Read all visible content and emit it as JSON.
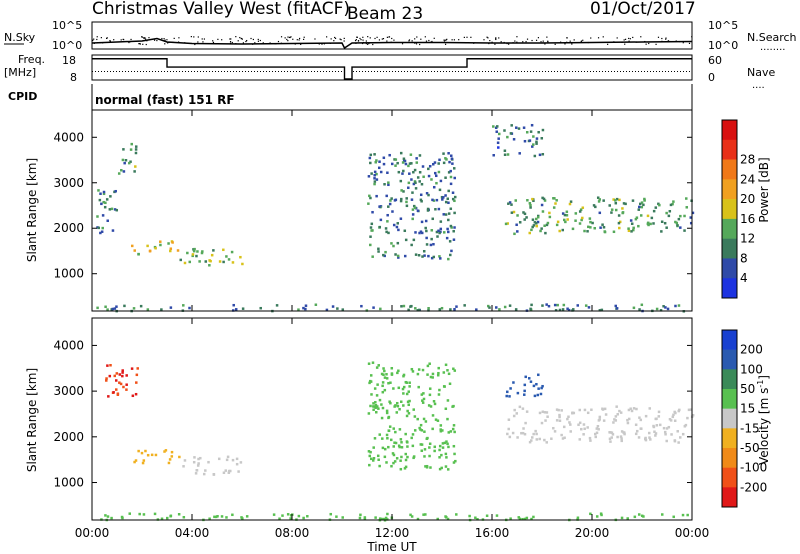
{
  "header": {
    "station": "Christmas Valley West (fitACF)",
    "beam": "Beam 23",
    "date": "01/Oct/2017"
  },
  "noise_panel": {
    "left_label": "N.Sky",
    "right_label": "N.Search",
    "ytick_top": "10^5",
    "ytick_bottom": "10^0",
    "yrange": [
      0,
      5
    ]
  },
  "freq_panel": {
    "left_label_top": "Freq.",
    "left_label_unit": "[MHz]",
    "right_label": "Nave",
    "left_ticks": [
      "18",
      "8"
    ],
    "right_ticks": [
      "60",
      "0"
    ],
    "freq_range_mhz": [
      8,
      18
    ],
    "nave_range": [
      0,
      60
    ]
  },
  "cpid": {
    "label": "CPID",
    "text": "normal (fast) 151 RF"
  },
  "power_panel": {
    "ylabel": "Slant Range [km]",
    "yticks": [
      "1000",
      "2000",
      "3000",
      "4000"
    ],
    "colorbar_label": "Power [dB]",
    "colorbar_ticks": [
      "4",
      "8",
      "12",
      "16",
      "20",
      "24",
      "28"
    ],
    "colors": [
      "#1d33e0",
      "#2f4aa8",
      "#3a7a5c",
      "#55a85a",
      "#d8c21a",
      "#f0a020",
      "#f07818",
      "#e83018",
      "#d81010"
    ]
  },
  "velocity_panel": {
    "ylabel": "Slant Range [km]",
    "yticks": [
      "1000",
      "2000",
      "3000",
      "4000"
    ],
    "colorbar_label": "Velocity [m s",
    "colorbar_sup": "-1",
    "colorbar_close": "]",
    "colorbar_ticks": [
      "200",
      "100",
      "50",
      "15",
      "-15",
      "-50",
      "-100",
      "-200"
    ],
    "colors": [
      "#1840d0",
      "#2a5ab0",
      "#3a8a58",
      "#58c050",
      "#c8c8c8",
      "#f0b020",
      "#f08a18",
      "#f05018",
      "#e01818"
    ]
  },
  "xaxis": {
    "label": "Time UT",
    "ticks": [
      "00:00",
      "04:00",
      "08:00",
      "12:00",
      "16:00",
      "20:00",
      "00:00"
    ]
  },
  "chart_data": [
    {
      "type": "line",
      "name": "Noise (N.Sky)",
      "x": [
        0,
        1,
        2,
        2.6,
        3,
        4,
        6,
        8,
        10,
        10.1,
        10.4,
        12,
        14,
        16,
        18,
        20,
        22,
        24
      ],
      "values": [
        1.0,
        1.2,
        1.4,
        1.9,
        1.2,
        0.9,
        0.8,
        0.9,
        1.0,
        0.0,
        1.0,
        1.1,
        1.1,
        1.0,
        1.0,
        1.1,
        1.2,
        1.3
      ],
      "xlim": [
        0,
        24
      ],
      "ylim": [
        0,
        5
      ]
    },
    {
      "type": "line",
      "name": "Frequency",
      "x": [
        0,
        3,
        3,
        10.1,
        10.1,
        10.4,
        10.4,
        15,
        15,
        24
      ],
      "values": [
        16.8,
        16.8,
        13.2,
        13.2,
        8,
        8,
        13.2,
        13.2,
        16.8,
        16.8
      ],
      "xlim": [
        0,
        24
      ],
      "ylim": [
        8,
        18
      ]
    },
    {
      "type": "scatter",
      "title": "Power [dB]",
      "xlabel": "Time UT",
      "ylabel": "Slant Range [km]",
      "xlim": [
        0,
        24
      ],
      "ylim": [
        180,
        4600
      ],
      "patches": [
        {
          "t0": 0,
          "t1": 24,
          "r0": 200,
          "r1": 350,
          "v": 10
        },
        {
          "t0": 1.5,
          "t1": 3.5,
          "r0": 1450,
          "r1": 1750,
          "v": 18
        },
        {
          "t0": 3.5,
          "t1": 6.0,
          "r0": 1200,
          "r1": 1600,
          "v": 14
        },
        {
          "t0": 0.1,
          "t1": 1.0,
          "r0": 1900,
          "r1": 2900,
          "v": 10
        },
        {
          "t0": 1.0,
          "t1": 1.8,
          "r0": 3200,
          "r1": 3900,
          "v": 12
        },
        {
          "t0": 11.0,
          "t1": 14.5,
          "r0": 1300,
          "r1": 3700,
          "v": 9
        },
        {
          "t0": 16.0,
          "t1": 18.0,
          "r0": 3600,
          "r1": 4300,
          "v": 8
        },
        {
          "t0": 16.5,
          "t1": 24.0,
          "r0": 1900,
          "r1": 2700,
          "v": 12
        }
      ]
    },
    {
      "type": "scatter",
      "title": "Velocity [m s-1]",
      "xlabel": "Time UT",
      "ylabel": "Slant Range [km]",
      "xlim": [
        0,
        24
      ],
      "ylim": [
        180,
        4600
      ],
      "patches": [
        {
          "t0": 0,
          "t1": 24,
          "r0": 200,
          "r1": 350,
          "v": 20
        },
        {
          "t0": 1.5,
          "t1": 3.5,
          "r0": 1450,
          "r1": 1750,
          "v": -30
        },
        {
          "t0": 3.5,
          "t1": 6.0,
          "r0": 1200,
          "r1": 1600,
          "v": 0
        },
        {
          "t0": 0.5,
          "t1": 1.8,
          "r0": 2900,
          "r1": 3700,
          "v": -200
        },
        {
          "t0": 11.0,
          "t1": 14.5,
          "r0": 1300,
          "r1": 3700,
          "v": 30
        },
        {
          "t0": 16.5,
          "t1": 18.0,
          "r0": 2900,
          "r1": 3400,
          "v": 150
        },
        {
          "t0": 16.5,
          "t1": 24.0,
          "r0": 1900,
          "r1": 2700,
          "v": 0
        }
      ]
    }
  ]
}
